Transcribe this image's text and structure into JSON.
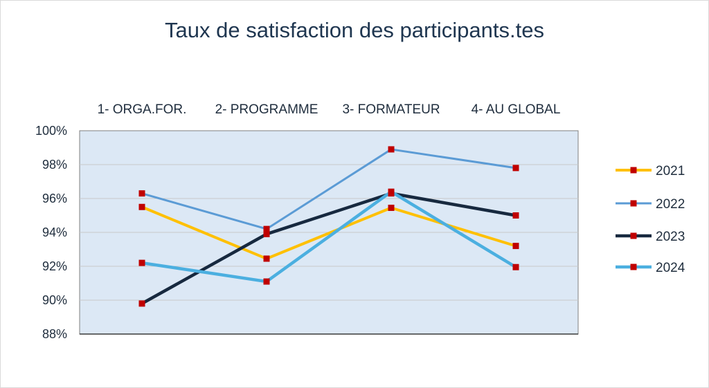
{
  "chart_data": {
    "type": "line",
    "title": "Taux de satisfaction des participants.tes",
    "categories": [
      "1- ORGA.FOR.",
      "2- PROGRAMME",
      "3- FORMATEUR",
      "4- AU GLOBAL"
    ],
    "ylim": [
      88,
      100
    ],
    "yticks": [
      "88%",
      "90%",
      "92%",
      "94%",
      "96%",
      "98%",
      "100%"
    ],
    "ytick_values": [
      88,
      90,
      92,
      94,
      96,
      98,
      100
    ],
    "grid": true,
    "legend_position": "right",
    "plot_background": "#dce8f5",
    "marker_color": "#c00000",
    "series": [
      {
        "name": "2021",
        "values": [
          95.5,
          92.45,
          95.45,
          93.2
        ],
        "color": "#ffc000",
        "width": 4
      },
      {
        "name": "2022",
        "values": [
          96.3,
          94.2,
          98.9,
          97.8
        ],
        "color": "#5b9bd5",
        "width": 3
      },
      {
        "name": "2023",
        "values": [
          89.8,
          93.9,
          96.3,
          95.0
        ],
        "color": "#17293f",
        "width": 4.5
      },
      {
        "name": "2024",
        "values": [
          92.2,
          91.1,
          96.4,
          91.95
        ],
        "color": "#4bafe0",
        "width": 4.5
      }
    ]
  }
}
